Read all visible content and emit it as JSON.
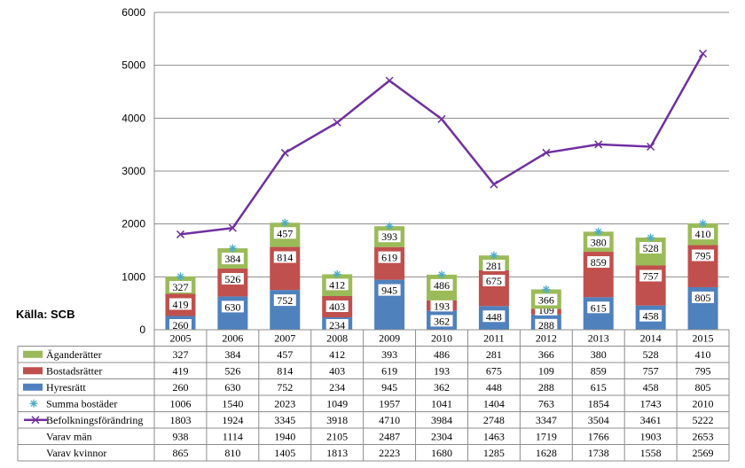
{
  "chart_data": {
    "type": "bar",
    "stacked": true,
    "source_label": "Källa: SCB",
    "categories": [
      "2005",
      "2006",
      "2007",
      "2008",
      "2009",
      "2010",
      "2011",
      "2012",
      "2013",
      "2014",
      "2015"
    ],
    "ylim": [
      0,
      6000
    ],
    "yticks": [
      "0",
      "1000",
      "2000",
      "3000",
      "4000",
      "5000",
      "6000"
    ],
    "grid": true,
    "colors": {
      "hyresratt": "#4f81bd",
      "bostadsratter": "#c0504d",
      "aganderatter": "#9bbb59",
      "summa": "#4bacc6",
      "befolkning": "#7030a0"
    },
    "series": [
      {
        "name": "Hyresrätt",
        "kind": "bar",
        "values": [
          260,
          630,
          752,
          234,
          945,
          362,
          448,
          288,
          615,
          458,
          805
        ]
      },
      {
        "name": "Bostadsrätter",
        "kind": "bar",
        "values": [
          419,
          526,
          814,
          403,
          619,
          193,
          675,
          109,
          859,
          757,
          795
        ]
      },
      {
        "name": "Äganderätter",
        "kind": "bar",
        "values": [
          327,
          384,
          457,
          412,
          393,
          486,
          281,
          366,
          380,
          528,
          410
        ]
      },
      {
        "name": "Summa bostäder",
        "kind": "marker",
        "values": [
          1006,
          1540,
          2023,
          1049,
          1957,
          1041,
          1404,
          763,
          1854,
          1743,
          2010
        ]
      },
      {
        "name": "Befolkningsförändring",
        "kind": "line",
        "values": [
          1803,
          1924,
          3345,
          3918,
          4710,
          3984,
          2748,
          3347,
          3504,
          3461,
          5222
        ]
      }
    ],
    "table_rows": [
      {
        "label": "Äganderätter",
        "key": "aganderatter",
        "values": [
          "327",
          "384",
          "457",
          "412",
          "393",
          "486",
          "281",
          "366",
          "380",
          "528",
          "410"
        ]
      },
      {
        "label": "Bostadsrätter",
        "key": "bostadsratter",
        "values": [
          "419",
          "526",
          "814",
          "403",
          "619",
          "193",
          "675",
          "109",
          "859",
          "757",
          "795"
        ]
      },
      {
        "label": "Hyresrätt",
        "key": "hyresratt",
        "values": [
          "260",
          "630",
          "752",
          "234",
          "945",
          "362",
          "448",
          "288",
          "615",
          "458",
          "805"
        ]
      },
      {
        "label": "Summa bostäder",
        "key": "summa",
        "values": [
          "1006",
          "1540",
          "2023",
          "1049",
          "1957",
          "1041",
          "1404",
          "763",
          "1854",
          "1743",
          "2010"
        ]
      },
      {
        "label": "Befolkningsförändring",
        "key": "befolkning",
        "values": [
          "1803",
          "1924",
          "3345",
          "3918",
          "4710",
          "3984",
          "2748",
          "3347",
          "3504",
          "3461",
          "5222"
        ]
      },
      {
        "label": "Varav män",
        "key": "",
        "values": [
          "938",
          "1114",
          "1940",
          "2105",
          "2487",
          "2304",
          "1463",
          "1719",
          "1766",
          "1903",
          "2653"
        ]
      },
      {
        "label": "Varav kvinnor",
        "key": "",
        "values": [
          "865",
          "810",
          "1405",
          "1813",
          "2223",
          "1680",
          "1285",
          "1628",
          "1738",
          "1558",
          "2569"
        ]
      }
    ]
  }
}
